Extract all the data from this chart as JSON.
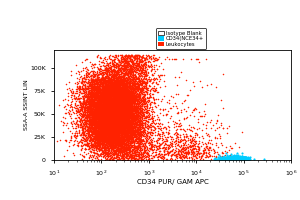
{
  "title": "",
  "xlabel": "CD34 PUR/ GAM APC",
  "ylabel": "SSA-A SSINT LIN",
  "legend_entries": [
    "Isotype Blank",
    "CD34(NCE34+",
    "Leukocytes"
  ],
  "legend_colors": [
    "#ffffff",
    "#00bfff",
    "#ff3300"
  ],
  "background_color": "#ffffff",
  "plot_bg_color": "#ffffff",
  "xmin": 10,
  "xmax": 1000000,
  "ymin": 0,
  "ymax": 120000,
  "yticks": [
    0,
    25000,
    50000,
    75000,
    100000
  ],
  "ytick_labels": [
    "0",
    "25K",
    "50K",
    "75K",
    "100K"
  ],
  "n_red_dense": 12000,
  "n_red_sparse": 800,
  "n_cyan": 500,
  "red_color": "#ff2200",
  "cyan_color": "#00ccff",
  "dot_size": 1.2
}
